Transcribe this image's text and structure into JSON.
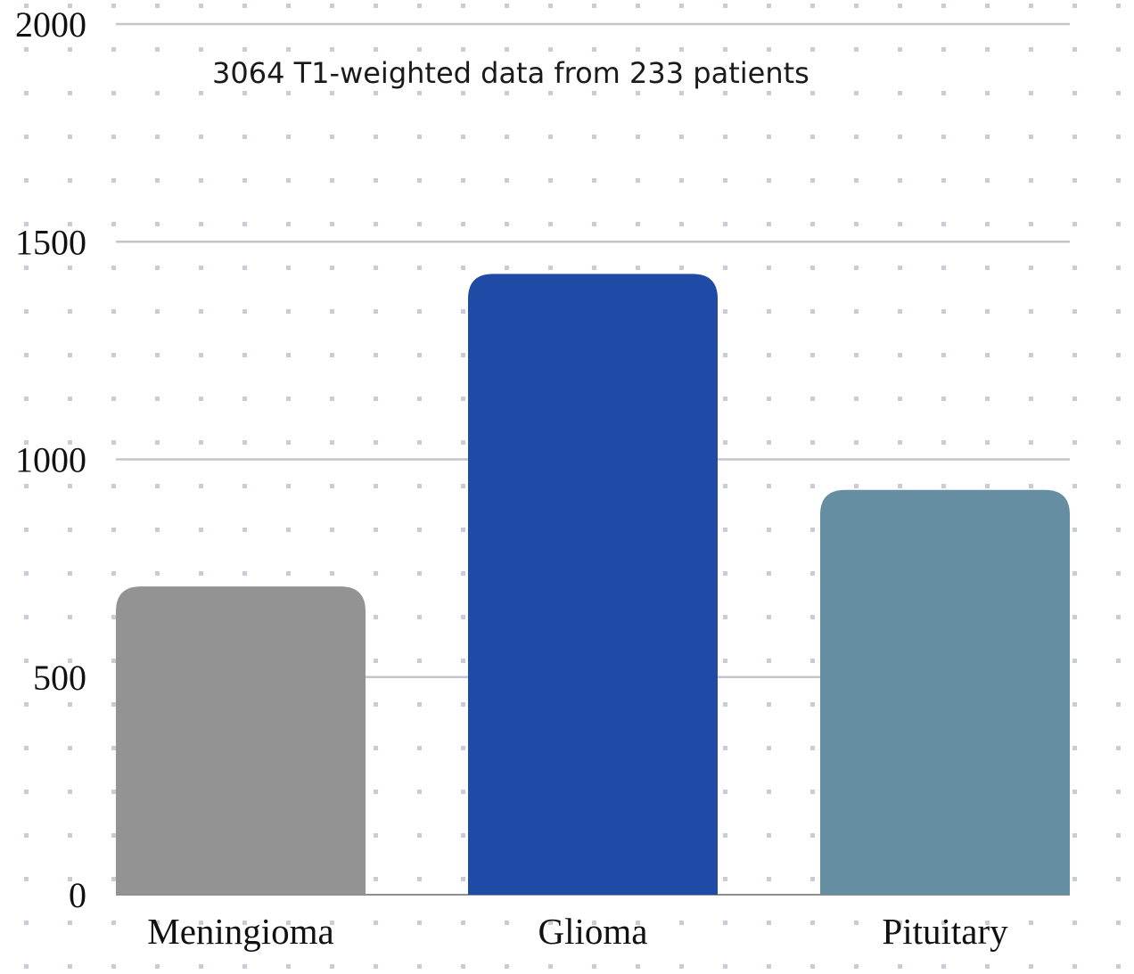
{
  "chart_data": {
    "type": "bar",
    "title": "",
    "subtitle": "3064 T1-weighted data from 233 patients",
    "xlabel": "",
    "ylabel": "",
    "categories": [
      "Meningioma",
      "Glioma",
      "Pituitary"
    ],
    "values": [
      708,
      1426,
      930
    ],
    "ylim": [
      0,
      2000
    ],
    "yticks": [
      0,
      500,
      1000,
      1500,
      2000
    ],
    "grid": true,
    "legend": "none",
    "colors": [
      "#939393",
      "#1f4ba7",
      "#668ea2"
    ],
    "background_pattern": "dot-grid",
    "dot_color": "#c9ccd6",
    "gridline_color": "#c4c6cc"
  }
}
